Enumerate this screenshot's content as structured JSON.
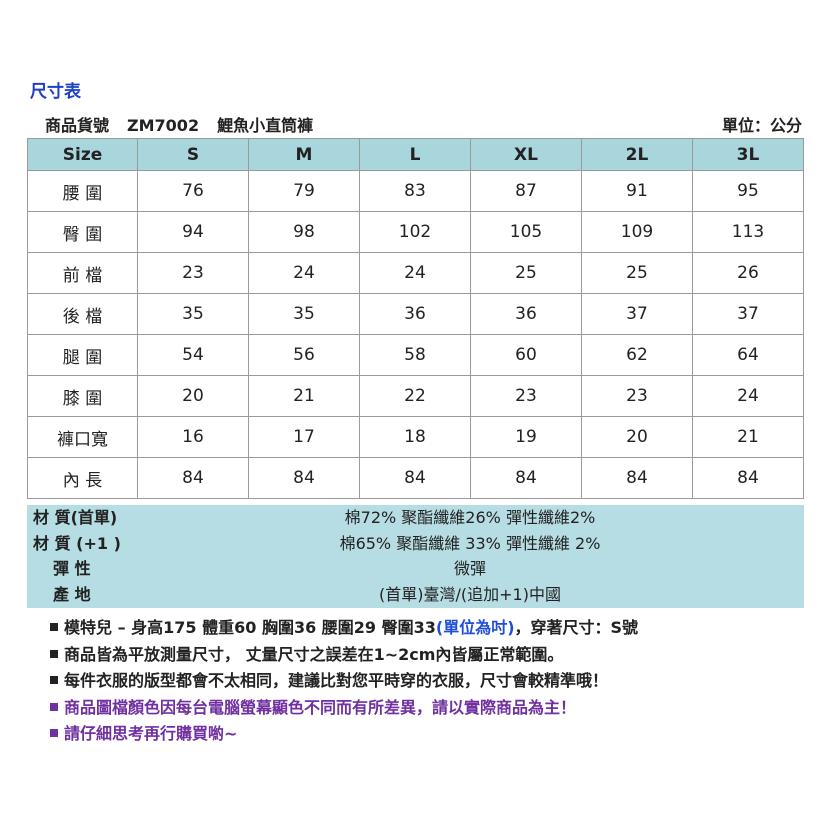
{
  "title": "尺寸表",
  "product": {
    "label": "商品貨號",
    "code": "ZM7002",
    "name": "鯉魚小直筒褲"
  },
  "unit": "單位：公分",
  "table": {
    "header": [
      "Size",
      "S",
      "M",
      "L",
      "XL",
      "2L",
      "3L"
    ],
    "rows": [
      [
        "腰 圍",
        76,
        79,
        83,
        87,
        91,
        95
      ],
      [
        "臀 圍",
        94,
        98,
        102,
        105,
        109,
        113
      ],
      [
        "前 檔",
        23,
        24,
        24,
        25,
        25,
        26
      ],
      [
        "後 檔",
        35,
        35,
        36,
        36,
        37,
        37
      ],
      [
        "腿 圍",
        54,
        56,
        58,
        60,
        62,
        64
      ],
      [
        "膝 圍",
        20,
        21,
        22,
        23,
        23,
        24
      ],
      [
        "褲口寬",
        16,
        17,
        18,
        19,
        20,
        21
      ],
      [
        "內 長",
        84,
        84,
        84,
        84,
        84,
        84
      ]
    ]
  },
  "materials": [
    [
      "材 質(首單)",
      "棉72% 聚酯纖維26% 彈性纖維2%"
    ],
    [
      "材 質 (+1 )",
      "棉65% 聚酯纖維 33% 彈性纖維 2%"
    ],
    [
      "彈 性",
      "微彈"
    ],
    [
      "產 地",
      "(首單)臺灣/(追加+1)中國"
    ]
  ],
  "notes": [
    [
      "模特兒 – 身高175 體重60 胸圍36 腰圍29 臀圍33",
      "(單位為吋)",
      "，穿著尺寸：S號"
    ],
    [
      "商品皆為平放測量尺寸， 丈量尺寸之誤差在1~2cm內皆屬正常範圍。"
    ],
    [
      "每件衣服的版型都會不太相同，建議比對您平時穿的衣服，尺寸會較精準哦！"
    ],
    [
      "商品圖檔顏色因每台電腦螢幕顯色不同而有所差異，請以實際商品為主！"
    ],
    [
      "請仔細思考再行購買喲~"
    ]
  ]
}
